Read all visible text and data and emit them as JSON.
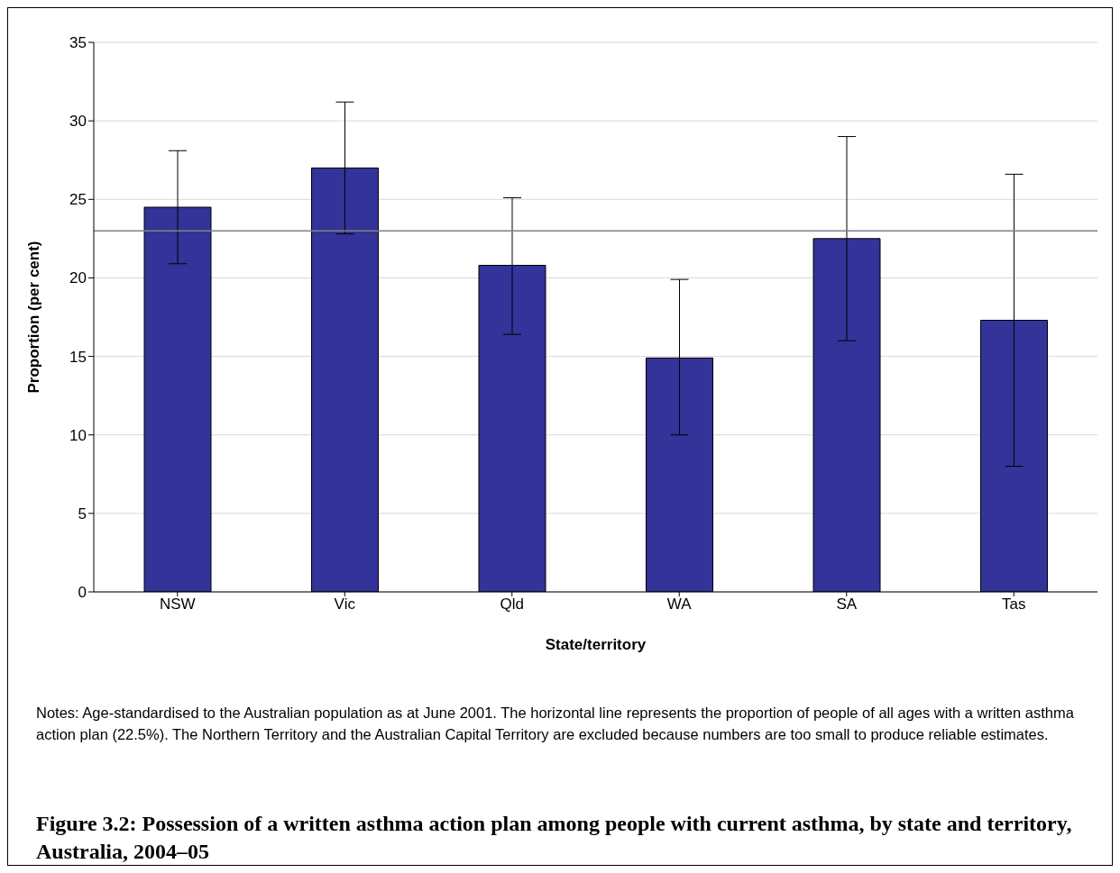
{
  "chart_data": {
    "type": "bar",
    "title": "Figure 3.2: Possession of a written asthma action plan among people with current asthma, by state and territory, Australia, 2004–05",
    "xlabel": "State/territory",
    "ylabel": "Proportion (per cent)",
    "categories": [
      "NSW",
      "Vic",
      "Qld",
      "WA",
      "SA",
      "Tas"
    ],
    "values": [
      24.5,
      27.0,
      20.8,
      14.9,
      22.5,
      17.3
    ],
    "errors": [
      [
        20.9,
        28.1
      ],
      [
        22.8,
        31.2
      ],
      [
        16.4,
        25.1
      ],
      [
        10.0,
        19.9
      ],
      [
        16.0,
        29.0
      ],
      [
        8.0,
        26.6
      ]
    ],
    "color": "#333399",
    "ylim": [
      0,
      35
    ],
    "yticks": [
      0,
      5,
      10,
      15,
      20,
      25,
      30,
      35
    ],
    "grid": "y",
    "ref_lines": [
      {
        "axis": "y",
        "value": 23.0,
        "color": "#808080"
      }
    ],
    "annotations": [
      "Notes: Age-standardised to the Australian population as at June 2001. The horizontal line represents the proportion of people of all ages with a written asthma action plan (22.5%). The Northern Territory and the Australian Capital Territory are excluded because numbers are too small to produce reliable estimates."
    ]
  }
}
